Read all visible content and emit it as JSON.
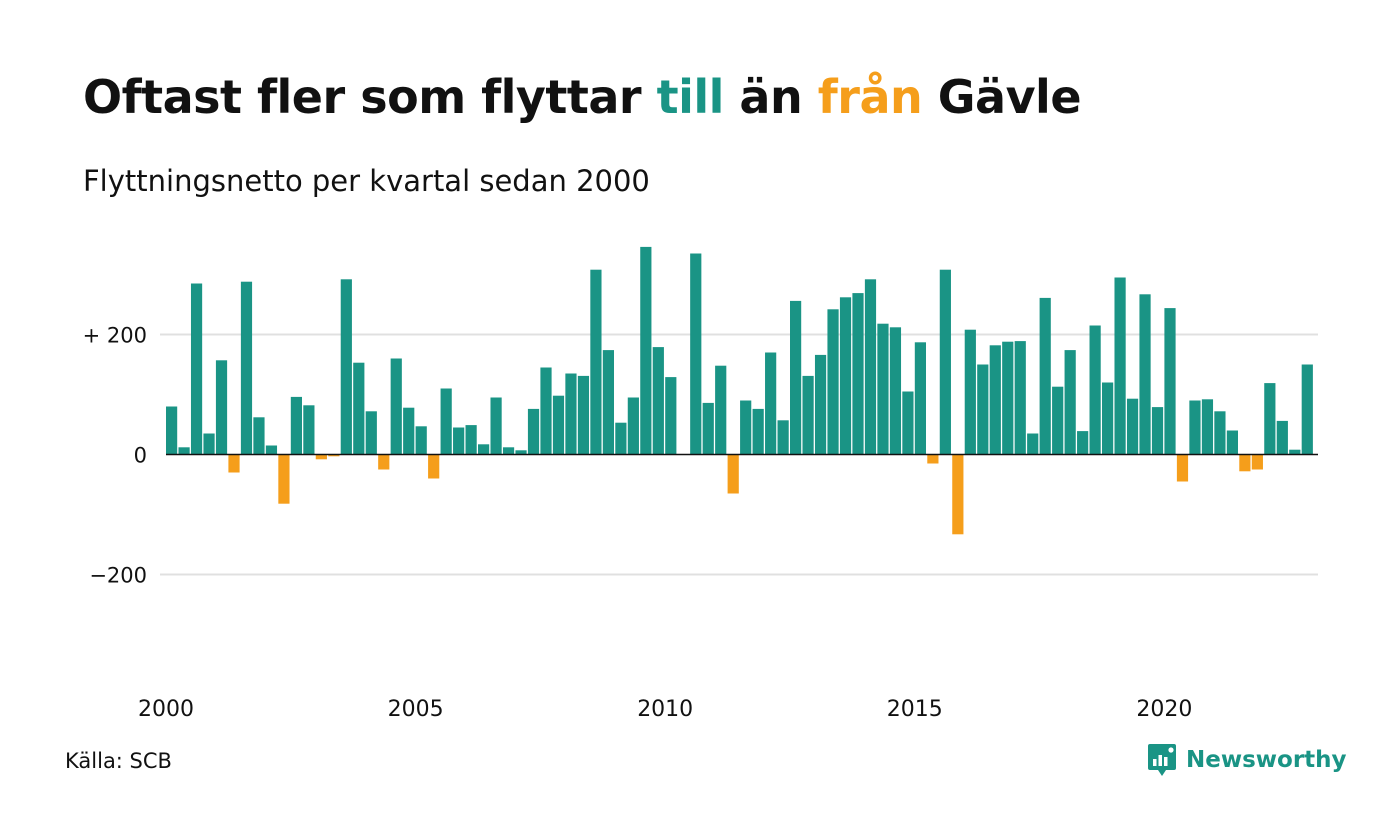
{
  "title": {
    "part1": "Oftast fler som flyttar ",
    "pos_word": "till",
    "part2": " än ",
    "neg_word": "från",
    "part3": " Gävle"
  },
  "subtitle": "Flyttningsnetto per kvartal sedan 2000",
  "source": "Källa: SCB",
  "brand": "Newsworthy",
  "colors": {
    "positive": "#1a9485",
    "negative": "#f59e1b",
    "grid": "#e0e0e0",
    "zero_line": "#111111"
  },
  "chart_data": {
    "type": "bar",
    "ylim": [
      -330,
      350
    ],
    "yticks": [
      {
        "value": 200,
        "label": "+ 200"
      },
      {
        "value": 0,
        "label": "0"
      },
      {
        "value": -200,
        "label": "−200"
      }
    ],
    "xtick_labels": [
      "2000",
      "2005",
      "2010",
      "2015",
      "2020"
    ],
    "start_year": 2000,
    "periods_per_year": 4,
    "values": [
      80,
      12,
      285,
      35,
      157,
      -30,
      288,
      62,
      15,
      -82,
      96,
      82,
      -8,
      -3,
      292,
      153,
      72,
      -25,
      160,
      78,
      47,
      -40,
      110,
      45,
      49,
      17,
      95,
      12,
      7,
      76,
      145,
      98,
      135,
      131,
      308,
      174,
      53,
      95,
      346,
      179,
      129,
      0,
      335,
      86,
      148,
      -65,
      90,
      76,
      170,
      57,
      256,
      131,
      166,
      242,
      262,
      269,
      292,
      218,
      212,
      105,
      187,
      -15,
      308,
      -133,
      208,
      150,
      182,
      188,
      189,
      35,
      261,
      113,
      174,
      39,
      215,
      120,
      295,
      93,
      267,
      79,
      244,
      -45,
      90,
      92,
      72,
      40,
      -28,
      -25,
      119,
      56,
      8,
      150
    ]
  }
}
